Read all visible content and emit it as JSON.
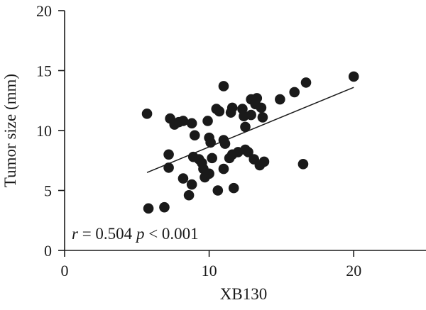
{
  "chart_data": {
    "type": "scatter",
    "xlabel": "XB130",
    "ylabel": "Tumor size (mm)",
    "xlim": [
      0,
      25
    ],
    "ylim": [
      0,
      20
    ],
    "x_ticks": [
      0,
      10,
      20
    ],
    "y_ticks": [
      0,
      5,
      10,
      15,
      20
    ],
    "x_tick_labels": [
      "0",
      "10",
      "20"
    ],
    "y_tick_labels": [
      "0",
      "5",
      "10",
      "15",
      "20"
    ],
    "grid": false,
    "legend": "none",
    "annotation": {
      "r_symbol": "r",
      "r_text": " = 0.504 ",
      "p_symbol": "p",
      "p_text": " < 0.001"
    },
    "trendline": {
      "x": [
        5.7,
        20.0
      ],
      "y": [
        6.5,
        13.6
      ]
    },
    "points": [
      {
        "x": 5.7,
        "y": 11.4
      },
      {
        "x": 5.8,
        "y": 3.5
      },
      {
        "x": 6.9,
        "y": 3.6
      },
      {
        "x": 7.2,
        "y": 6.9
      },
      {
        "x": 7.2,
        "y": 8.0
      },
      {
        "x": 7.3,
        "y": 11.0
      },
      {
        "x": 7.6,
        "y": 10.5
      },
      {
        "x": 7.9,
        "y": 10.7
      },
      {
        "x": 8.2,
        "y": 10.8
      },
      {
        "x": 8.2,
        "y": 6.0
      },
      {
        "x": 8.6,
        "y": 4.6
      },
      {
        "x": 8.8,
        "y": 5.5
      },
      {
        "x": 8.8,
        "y": 10.6
      },
      {
        "x": 8.9,
        "y": 7.8
      },
      {
        "x": 9.0,
        "y": 9.6
      },
      {
        "x": 9.3,
        "y": 7.6
      },
      {
        "x": 9.5,
        "y": 7.3
      },
      {
        "x": 9.6,
        "y": 6.8
      },
      {
        "x": 9.7,
        "y": 6.1
      },
      {
        "x": 9.9,
        "y": 10.8
      },
      {
        "x": 10.0,
        "y": 9.4
      },
      {
        "x": 10.0,
        "y": 6.4
      },
      {
        "x": 10.1,
        "y": 9.0
      },
      {
        "x": 10.2,
        "y": 7.7
      },
      {
        "x": 10.5,
        "y": 11.8
      },
      {
        "x": 10.6,
        "y": 5.0
      },
      {
        "x": 10.7,
        "y": 11.6
      },
      {
        "x": 11.0,
        "y": 13.7
      },
      {
        "x": 11.0,
        "y": 9.2
      },
      {
        "x": 11.0,
        "y": 6.8
      },
      {
        "x": 11.1,
        "y": 8.9
      },
      {
        "x": 11.4,
        "y": 7.7
      },
      {
        "x": 11.5,
        "y": 11.5
      },
      {
        "x": 11.6,
        "y": 11.9
      },
      {
        "x": 11.6,
        "y": 8.0
      },
      {
        "x": 11.7,
        "y": 5.2
      },
      {
        "x": 12.0,
        "y": 8.2
      },
      {
        "x": 12.3,
        "y": 11.8
      },
      {
        "x": 12.4,
        "y": 11.2
      },
      {
        "x": 12.5,
        "y": 10.3
      },
      {
        "x": 12.5,
        "y": 8.4
      },
      {
        "x": 12.7,
        "y": 8.2
      },
      {
        "x": 12.9,
        "y": 11.3
      },
      {
        "x": 12.9,
        "y": 12.6
      },
      {
        "x": 13.1,
        "y": 7.6
      },
      {
        "x": 13.2,
        "y": 12.2
      },
      {
        "x": 13.3,
        "y": 12.7
      },
      {
        "x": 13.5,
        "y": 7.1
      },
      {
        "x": 13.6,
        "y": 11.9
      },
      {
        "x": 13.7,
        "y": 11.1
      },
      {
        "x": 13.8,
        "y": 7.4
      },
      {
        "x": 14.9,
        "y": 12.6
      },
      {
        "x": 15.9,
        "y": 13.2
      },
      {
        "x": 16.5,
        "y": 7.2
      },
      {
        "x": 16.7,
        "y": 14.0
      },
      {
        "x": 20.0,
        "y": 14.5
      }
    ]
  }
}
